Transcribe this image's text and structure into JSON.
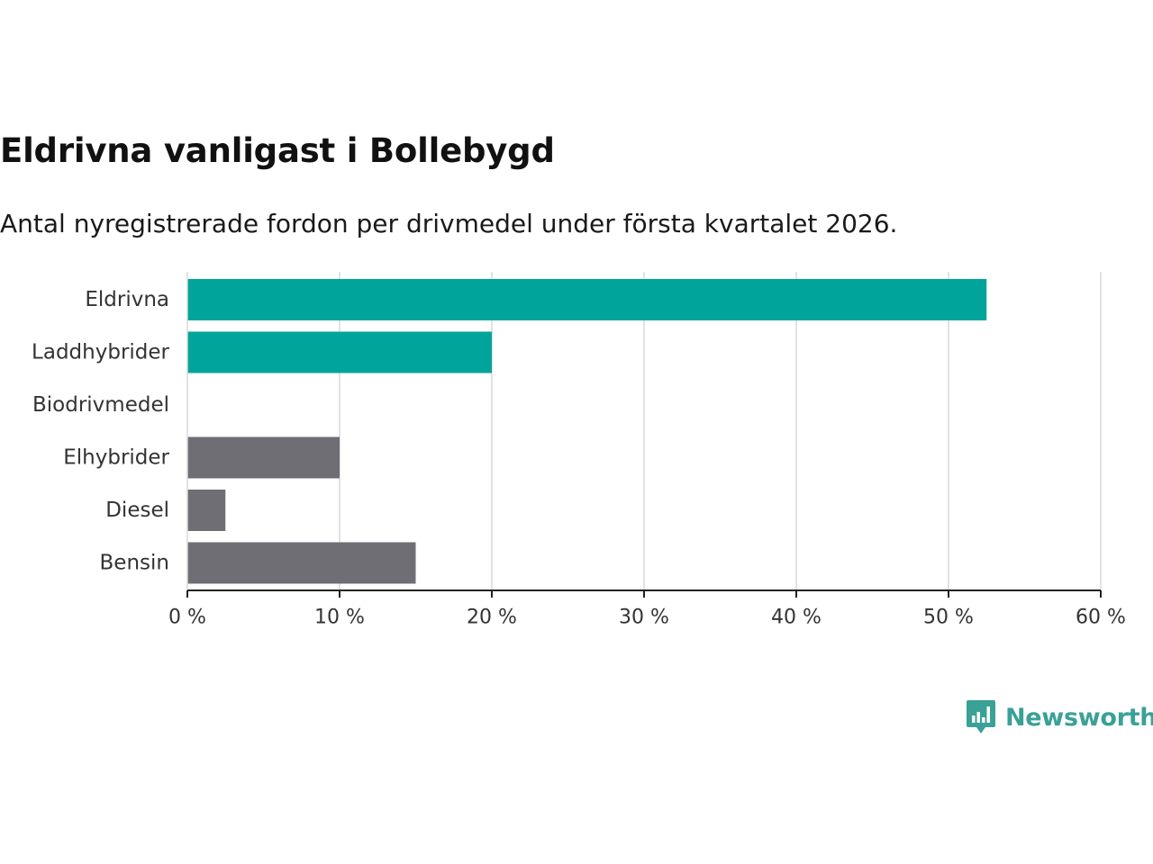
{
  "title": "Eldrivna vanligast i Bollebygd",
  "subtitle": "Antal nyregistrerade fordon per drivmedel under första kvartalet 2026.",
  "brand": {
    "name": "Newsworthy",
    "icon": "newsworthy-logo-icon"
  },
  "colors": {
    "highlight": "#00a49a",
    "other": "#6f6e74",
    "grid": "#d9d9d9",
    "axis": "#222222",
    "brand": "#3aa197"
  },
  "chart_data": {
    "type": "bar",
    "orientation": "horizontal",
    "categories": [
      "Eldrivna",
      "Laddhybrider",
      "Biodrivmedel",
      "Elhybrider",
      "Diesel",
      "Bensin"
    ],
    "values": [
      52.5,
      20,
      0,
      10,
      2.5,
      15
    ],
    "highlight": [
      true,
      true,
      true,
      false,
      false,
      false
    ],
    "xlim": [
      0,
      60
    ],
    "xticks": [
      0,
      10,
      20,
      30,
      40,
      50,
      60
    ],
    "xtick_labels": [
      "0 %",
      "10 %",
      "20 %",
      "30 %",
      "40 %",
      "50 %",
      "60 %"
    ],
    "xlabel": "",
    "ylabel": "",
    "grid": true,
    "unit": "%"
  }
}
